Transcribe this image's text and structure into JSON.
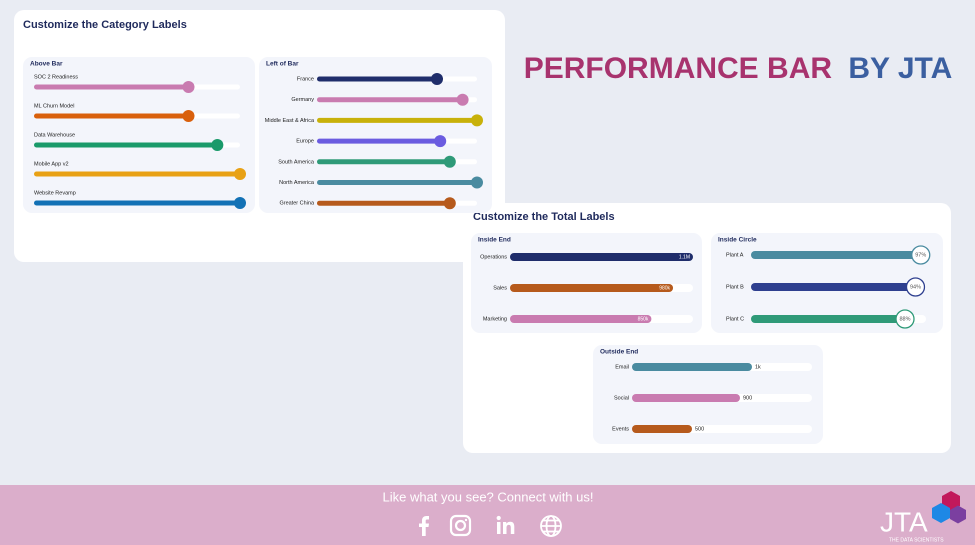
{
  "headline": {
    "part1": "PERFORMANCE BAR",
    "part2": "BY JTA"
  },
  "footer": {
    "text": "Like what you see? Connect with us!"
  },
  "brand": {
    "name": "JTA",
    "tagline": "THE DATA SCIENTISTS"
  },
  "cards": [
    {
      "title": "Customize the Category Labels"
    },
    {
      "title": "Customize the Total Labels"
    }
  ],
  "chart_data": [
    {
      "type": "bar",
      "orientation": "horizontal",
      "title": "Above Bar",
      "label_position": "above",
      "card": 0,
      "categories": [
        "SOC 2 Readiness",
        "ML Churn Model",
        "Data Warehouse",
        "Mobile App v2",
        "Website Revamp"
      ],
      "values": [
        75,
        75,
        89,
        100,
        100
      ],
      "colors": [
        "#c97bb0",
        "#d9600c",
        "#1a9a6a",
        "#e8a115",
        "#1271b5"
      ],
      "xlim": [
        0,
        100
      ]
    },
    {
      "type": "bar",
      "orientation": "horizontal",
      "title": "Left of Bar",
      "label_position": "left",
      "card": 0,
      "categories": [
        "France",
        "Germany",
        "Middle East & Africa",
        "Europe",
        "South America",
        "North America",
        "Greater China"
      ],
      "values": [
        75,
        91,
        100,
        77,
        83,
        100,
        83
      ],
      "colors": [
        "#1f2d6b",
        "#c97bb0",
        "#c8b10a",
        "#6b5ce0",
        "#2f9a78",
        "#4a8ba0",
        "#b65a1c"
      ],
      "xlim": [
        0,
        100
      ]
    },
    {
      "type": "bar",
      "orientation": "horizontal",
      "title": "Inside End",
      "label_position": "inside_end",
      "card": 1,
      "categories": [
        "Operations",
        "Sales",
        "Marketing"
      ],
      "values": [
        1100000,
        980000,
        850000
      ],
      "value_labels": [
        "1.1M",
        "980k",
        "850k"
      ],
      "colors": [
        "#1f2d6b",
        "#b65a1c",
        "#c97bb0"
      ],
      "xlim": [
        0,
        1100000
      ]
    },
    {
      "type": "bar",
      "orientation": "horizontal",
      "title": "Inside Circle",
      "label_position": "inside_circle",
      "card": 1,
      "categories": [
        "Plant A",
        "Plant B",
        "Plant C"
      ],
      "values": [
        97,
        94,
        88
      ],
      "value_labels": [
        "97%",
        "94%",
        "88%"
      ],
      "colors": [
        "#4a8ba0",
        "#2e3f8f",
        "#2f9a78"
      ],
      "xlim": [
        0,
        100
      ]
    },
    {
      "type": "bar",
      "orientation": "horizontal",
      "title": "Outside End",
      "label_position": "outside_end",
      "card": 1,
      "categories": [
        "Email",
        "Social",
        "Events"
      ],
      "values": [
        1000,
        900,
        500
      ],
      "value_labels": [
        "1k",
        "900",
        "500"
      ],
      "colors": [
        "#4a8ba0",
        "#c97bb0",
        "#b65a1c"
      ],
      "xlim": [
        0,
        1500
      ]
    }
  ]
}
